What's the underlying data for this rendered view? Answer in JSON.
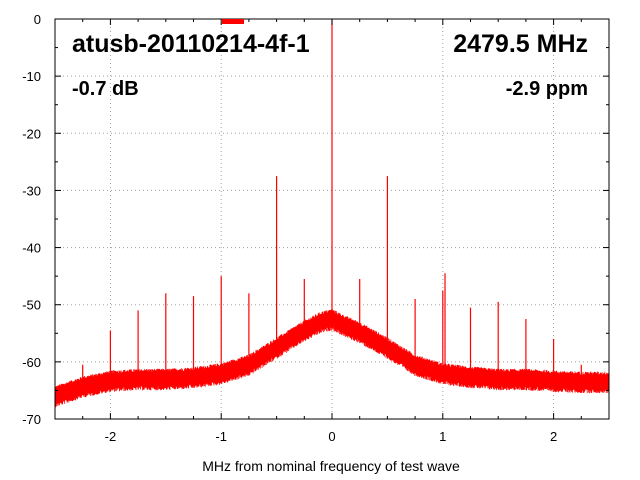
{
  "chart_data": {
    "type": "line",
    "title": "",
    "xlabel": "MHz from nominal frequency of test wave",
    "ylabel": "",
    "xlim": [
      -2.5,
      2.5
    ],
    "ylim": [
      -70,
      0
    ],
    "x_ticks": [
      "-2",
      "-1",
      "0",
      "1",
      "2"
    ],
    "x_tick_values": [
      -2,
      -1,
      0,
      1,
      2
    ],
    "y_ticks": [
      "0",
      "-10",
      "-20",
      "-30",
      "-40",
      "-50",
      "-60",
      "-70"
    ],
    "y_tick_values": [
      0,
      -10,
      -20,
      -30,
      -40,
      -50,
      -60,
      -70
    ],
    "grid": true,
    "grid_style": "dotted",
    "line_color": "#ff0000",
    "legend": "top-center",
    "annotations": {
      "device": "atusb-20110214-4f-1",
      "frequency": "2479.5 MHz",
      "level": "-0.7 dB",
      "offset": "-2.9 ppm"
    },
    "series": [
      {
        "style": "noise-floor",
        "x": [
          -2.5,
          -2.25,
          -2.0,
          -1.75,
          -1.5,
          -1.25,
          -1.0,
          -0.75,
          -0.5,
          -0.25,
          -0.1,
          0.0,
          0.1,
          0.25,
          0.5,
          0.75,
          1.0,
          1.25,
          1.5,
          1.75,
          2.0,
          2.25,
          2.5
        ],
        "y": [
          -66,
          -64.3,
          -63.3,
          -63,
          -63,
          -62.7,
          -62,
          -60.5,
          -57.5,
          -54.5,
          -53,
          -52.5,
          -53.5,
          -54.8,
          -57.5,
          -60.5,
          -62,
          -62.6,
          -63,
          -63,
          -63.3,
          -63.5,
          -63.5
        ]
      },
      {
        "style": "spurs",
        "x": [
          -2.25,
          -2.0,
          -1.75,
          -1.5,
          -1.25,
          -1.0,
          -0.75,
          -0.5,
          -0.25,
          0.0,
          0.25,
          0.5,
          0.75,
          1.0,
          1.02,
          1.25,
          1.5,
          1.75,
          2.0,
          2.25
        ],
        "y": [
          -60.5,
          -54.5,
          -51,
          -48,
          -48.5,
          -45,
          -48,
          -27.5,
          -45.5,
          0,
          -45.5,
          -27.5,
          -49,
          -47.5,
          -44.5,
          -50.5,
          -49.5,
          -52.5,
          -56,
          -60.5
        ]
      }
    ]
  }
}
